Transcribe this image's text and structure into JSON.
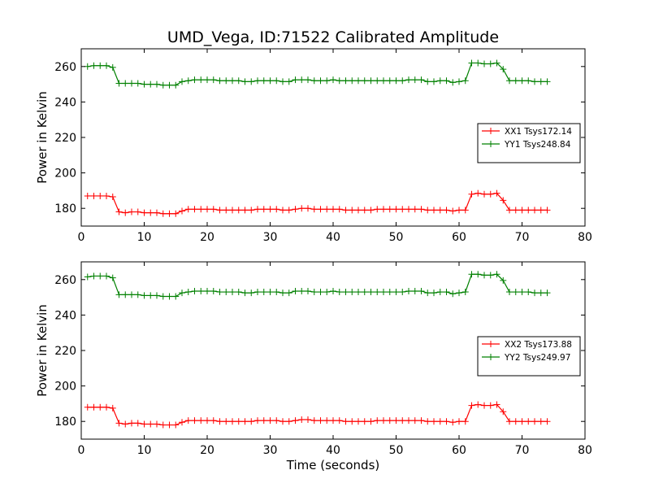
{
  "chart_data": [
    {
      "type": "line",
      "title": "UMD_Vega, ID:71522 Calibrated Amplitude",
      "xlabel": "",
      "ylabel": "Power in Kelvin",
      "xlim": [
        0,
        80
      ],
      "ylim": [
        170,
        270
      ],
      "xticks": [
        0,
        10,
        20,
        30,
        40,
        50,
        60,
        70,
        80
      ],
      "yticks": [
        180,
        200,
        220,
        240,
        260
      ],
      "grid": false,
      "legend_position": "right",
      "x": [
        1,
        2,
        3,
        4,
        5,
        6,
        7,
        8,
        9,
        10,
        11,
        12,
        13,
        14,
        15,
        16,
        17,
        18,
        19,
        20,
        21,
        22,
        23,
        24,
        25,
        26,
        27,
        28,
        29,
        30,
        31,
        32,
        33,
        34,
        35,
        36,
        37,
        38,
        39,
        40,
        41,
        42,
        43,
        44,
        45,
        46,
        47,
        48,
        49,
        50,
        51,
        52,
        53,
        54,
        55,
        56,
        57,
        58,
        59,
        60,
        61,
        62,
        63,
        64,
        65,
        66,
        67,
        68,
        69,
        70,
        71,
        72,
        73,
        74
      ],
      "series": [
        {
          "name": "XX1 Tsys172.14",
          "color": "#ff0000",
          "values": [
            187,
            187,
            187,
            187,
            186.5,
            178,
            177.5,
            178,
            178,
            177.5,
            177.5,
            177.5,
            177,
            177,
            177,
            178.5,
            179.5,
            179.5,
            179.5,
            179.5,
            179.5,
            179,
            179,
            179,
            179,
            179,
            179,
            179.5,
            179.5,
            179.5,
            179.5,
            179,
            179,
            179.5,
            180,
            180,
            179.5,
            179.5,
            179.5,
            179.5,
            179.5,
            179,
            179,
            179,
            179,
            179,
            179.5,
            179.5,
            179.5,
            179.5,
            179.5,
            179.5,
            179.5,
            179.5,
            179,
            179,
            179,
            179,
            178.5,
            179,
            179,
            188,
            188.5,
            188,
            188,
            188.5,
            184.5,
            179,
            179,
            179,
            179,
            179,
            179,
            179
          ]
        },
        {
          "name": "YY1 Tsys248.84",
          "color": "#008000",
          "values": [
            260,
            260.5,
            260.5,
            260.5,
            259.5,
            250.5,
            250.5,
            250.5,
            250.5,
            250,
            250,
            250,
            249.5,
            249.5,
            249.5,
            251.5,
            252,
            252.5,
            252.5,
            252.5,
            252.5,
            252,
            252,
            252,
            252,
            251.5,
            251.5,
            252,
            252,
            252,
            252,
            251.5,
            251.5,
            252.5,
            252.5,
            252.5,
            252,
            252,
            252,
            252.5,
            252,
            252,
            252,
            252,
            252,
            252,
            252,
            252,
            252,
            252,
            252,
            252.5,
            252.5,
            252.5,
            251.5,
            251.5,
            252,
            252,
            251,
            251.5,
            252,
            262,
            262,
            261.5,
            261.5,
            262,
            258.5,
            252,
            252,
            252,
            252,
            251.5,
            251.5,
            251.5
          ]
        }
      ]
    },
    {
      "type": "line",
      "title": "",
      "xlabel": "Time (seconds)",
      "ylabel": "Power in Kelvin",
      "xlim": [
        0,
        80
      ],
      "ylim": [
        170,
        270
      ],
      "xticks": [
        0,
        10,
        20,
        30,
        40,
        50,
        60,
        70,
        80
      ],
      "yticks": [
        180,
        200,
        220,
        240,
        260
      ],
      "grid": false,
      "legend_position": "right",
      "x": [
        1,
        2,
        3,
        4,
        5,
        6,
        7,
        8,
        9,
        10,
        11,
        12,
        13,
        14,
        15,
        16,
        17,
        18,
        19,
        20,
        21,
        22,
        23,
        24,
        25,
        26,
        27,
        28,
        29,
        30,
        31,
        32,
        33,
        34,
        35,
        36,
        37,
        38,
        39,
        40,
        41,
        42,
        43,
        44,
        45,
        46,
        47,
        48,
        49,
        50,
        51,
        52,
        53,
        54,
        55,
        56,
        57,
        58,
        59,
        60,
        61,
        62,
        63,
        64,
        65,
        66,
        67,
        68,
        69,
        70,
        71,
        72,
        73,
        74
      ],
      "series": [
        {
          "name": "XX2 Tsys173.88",
          "color": "#ff0000",
          "values": [
            188,
            188,
            188,
            188,
            187.5,
            179,
            178.5,
            179,
            179,
            178.5,
            178.5,
            178.5,
            178,
            178,
            178,
            179.5,
            180.5,
            180.5,
            180.5,
            180.5,
            180.5,
            180,
            180,
            180,
            180,
            180,
            180,
            180.5,
            180.5,
            180.5,
            180.5,
            180,
            180,
            180.5,
            181,
            181,
            180.5,
            180.5,
            180.5,
            180.5,
            180.5,
            180,
            180,
            180,
            180,
            180,
            180.5,
            180.5,
            180.5,
            180.5,
            180.5,
            180.5,
            180.5,
            180.5,
            180,
            180,
            180,
            180,
            179.5,
            180,
            180,
            189,
            189.5,
            189,
            189,
            189.5,
            185.5,
            180,
            180,
            180,
            180,
            180,
            180,
            180
          ]
        },
        {
          "name": "YY2 Tsys249.97",
          "color": "#008000",
          "values": [
            261.5,
            262,
            262,
            262,
            261,
            251.5,
            251.5,
            251.5,
            251.5,
            251,
            251,
            251,
            250.5,
            250.5,
            250.5,
            252.5,
            253,
            253.5,
            253.5,
            253.5,
            253.5,
            253,
            253,
            253,
            253,
            252.5,
            252.5,
            253,
            253,
            253,
            253,
            252.5,
            252.5,
            253.5,
            253.5,
            253.5,
            253,
            253,
            253,
            253.5,
            253,
            253,
            253,
            253,
            253,
            253,
            253,
            253,
            253,
            253,
            253,
            253.5,
            253.5,
            253.5,
            252.5,
            252.5,
            253,
            253,
            252,
            252.5,
            253,
            263,
            263,
            262.5,
            262.5,
            263,
            259.5,
            253,
            253,
            253,
            253,
            252.5,
            252.5,
            252.5
          ]
        }
      ]
    }
  ]
}
